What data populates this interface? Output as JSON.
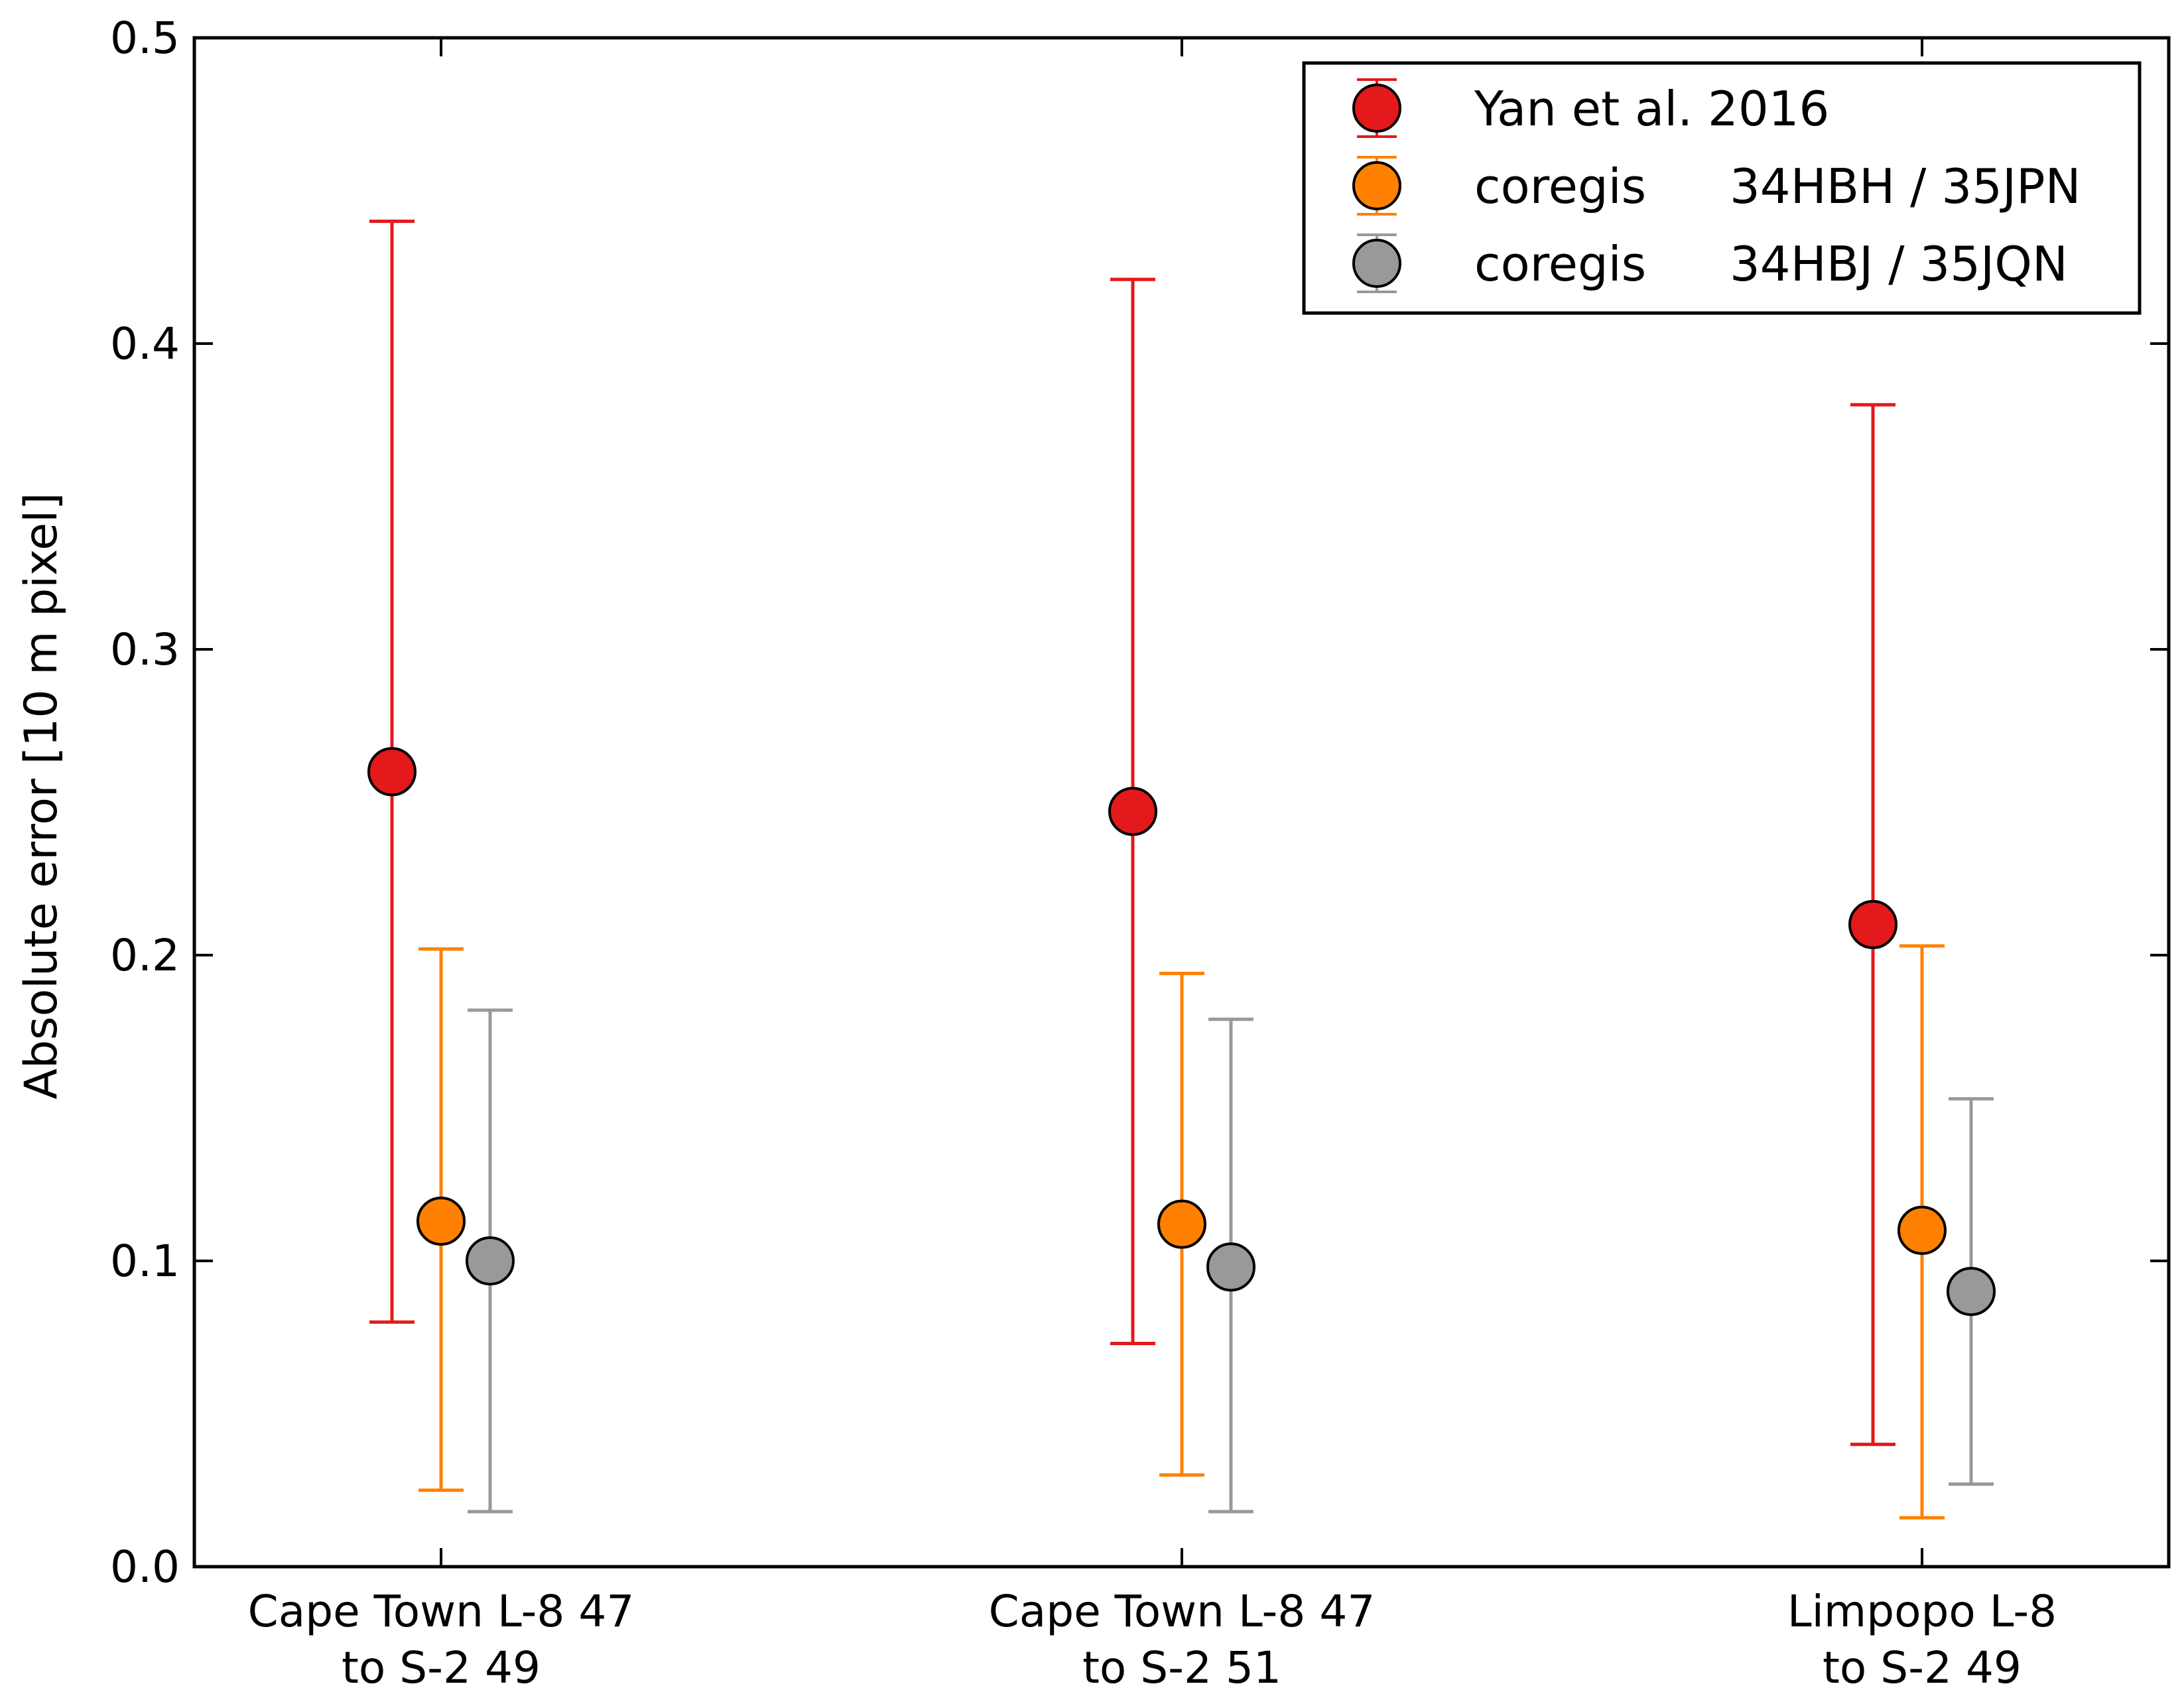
{
  "chart_data": {
    "type": "scatter",
    "title": "",
    "xlabel": "",
    "ylabel": "Absolute error [10 m pixel]",
    "ylim": [
      0.0,
      0.5
    ],
    "yticks": [
      {
        "value": 0.0,
        "label": "0.0"
      },
      {
        "value": 0.1,
        "label": "0.1"
      },
      {
        "value": 0.2,
        "label": "0.2"
      },
      {
        "value": 0.3,
        "label": "0.3"
      },
      {
        "value": 0.4,
        "label": "0.4"
      },
      {
        "value": 0.5,
        "label": "0.5"
      }
    ],
    "categories": [
      {
        "line1": "Cape Town L-8 47",
        "line2": "to S-2 49"
      },
      {
        "line1": "Cape Town L-8 47",
        "line2": "to S-2 51"
      },
      {
        "line1": "Limpopo L-8",
        "line2": "to S-2 49"
      }
    ],
    "grid": false,
    "legend_position": "top-right",
    "series": [
      {
        "name": "Yan et al. 2016",
        "legend_label": "Yan et al. 2016",
        "legend_code": "",
        "color": "#e3191c",
        "offset": -1,
        "values": [
          0.26,
          0.247,
          0.21
        ],
        "err_low": [
          0.08,
          0.073,
          0.04
        ],
        "err_high": [
          0.44,
          0.421,
          0.38
        ]
      },
      {
        "name": "coregis 34HBH / 35JPN",
        "legend_label": "coregis",
        "legend_code": "34HBH / 35JPN",
        "color": "#ff8000",
        "offset": 0,
        "values": [
          0.113,
          0.112,
          0.11
        ],
        "err_low": [
          0.025,
          0.03,
          0.016
        ],
        "err_high": [
          0.202,
          0.194,
          0.203
        ]
      },
      {
        "name": "coregis 34HBJ / 35JQN",
        "legend_label": "coregis",
        "legend_code": "34HBJ / 35JQN",
        "color": "#999999",
        "offset": 1,
        "values": [
          0.1,
          0.098,
          0.09
        ],
        "err_low": [
          0.018,
          0.018,
          0.027
        ],
        "err_high": [
          0.182,
          0.179,
          0.153
        ]
      }
    ]
  }
}
